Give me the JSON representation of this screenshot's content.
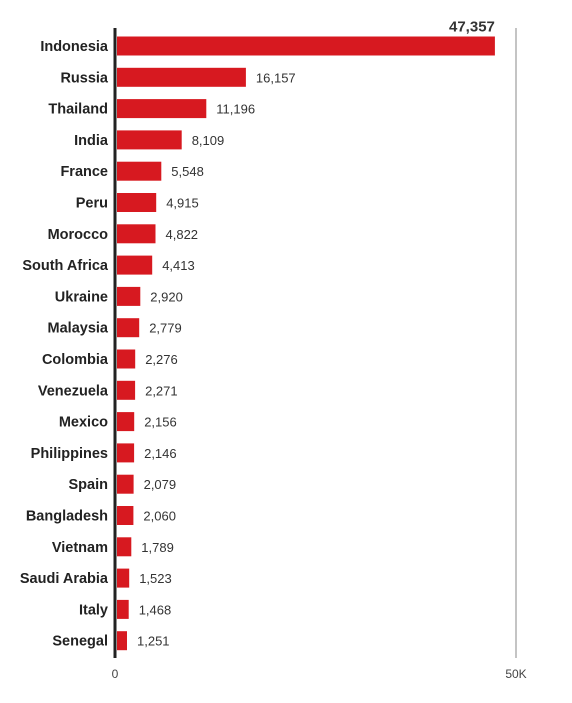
{
  "chart_data": {
    "type": "bar",
    "orientation": "horizontal",
    "categories": [
      "Indonesia",
      "Russia",
      "Thailand",
      "India",
      "France",
      "Peru",
      "Morocco",
      "South Africa",
      "Ukraine",
      "Malaysia",
      "Colombia",
      "Venezuela",
      "Mexico",
      "Philippines",
      "Spain",
      "Bangladesh",
      "Vietnam",
      "Saudi Arabia",
      "Italy",
      "Senegal"
    ],
    "values": [
      47357,
      16157,
      11196,
      8109,
      5548,
      4915,
      4822,
      4413,
      2920,
      2779,
      2276,
      2271,
      2156,
      2146,
      2079,
      2060,
      1789,
      1523,
      1468,
      1251
    ],
    "value_labels": [
      "47,357",
      "16,157",
      "11,196",
      "8,109",
      "5,548",
      "4,915",
      "4,822",
      "4,413",
      "2,920",
      "2,779",
      "2,276",
      "2,271",
      "2,156",
      "2,146",
      "2,079",
      "2,060",
      "1,789",
      "1,523",
      "1,468",
      "1,251"
    ],
    "highlight_index": 0,
    "xlim": [
      0,
      50000
    ],
    "xticks": [
      0,
      50000
    ],
    "xtick_labels": [
      "0",
      "50K"
    ],
    "bar_color": "#d71920",
    "highlight_label_color": "#d71920",
    "grid": false
  }
}
